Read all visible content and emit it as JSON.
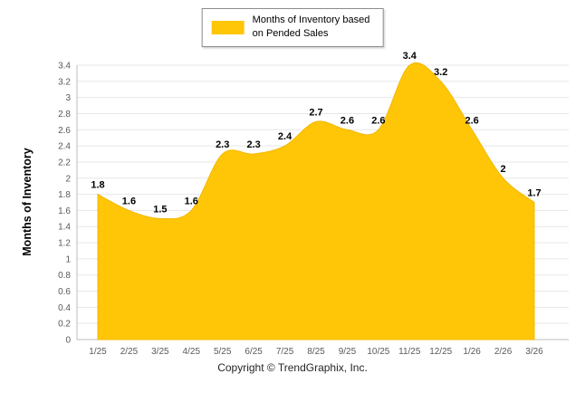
{
  "legend": {
    "line1": "Months of Inventory based",
    "line2": "on Pended Sales"
  },
  "footer": {
    "copyright": "Copyright © TrendGraphix, Inc."
  },
  "chart_data": {
    "type": "area",
    "title": "",
    "xlabel": "",
    "ylabel": "Months of Inventory",
    "categories": [
      "1/25",
      "2/25",
      "3/25",
      "4/25",
      "5/25",
      "6/25",
      "7/25",
      "8/25",
      "9/25",
      "10/25",
      "11/25",
      "12/25",
      "1/26",
      "2/26",
      "3/26"
    ],
    "series": [
      {
        "name": "Months of Inventory based on Pended Sales",
        "values": [
          1.8,
          1.6,
          1.5,
          1.6,
          2.3,
          2.3,
          2.4,
          2.7,
          2.6,
          2.6,
          3.4,
          3.2,
          2.6,
          2,
          1.7
        ]
      }
    ],
    "ylim": [
      0,
      3.4
    ],
    "ytick_step": 0.2,
    "grid": true,
    "legend_position": "top-center",
    "colors": {
      "area_fill": "#FFC507",
      "area_stroke": "#F2B900",
      "grid": "#e7e7e7",
      "axis": "#bdbdbd",
      "tick_text": "#595959",
      "label_text": "#000000"
    }
  }
}
